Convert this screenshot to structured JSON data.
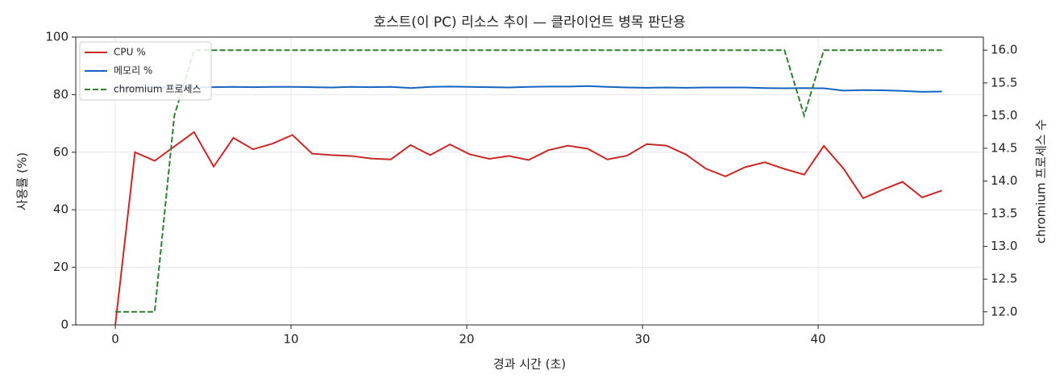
{
  "chart_data": {
    "type": "line",
    "title": "호스트(이 PC) 리소스 추이 — 클라이언트 병목 판단용",
    "x_label": "경과 시간 (초)",
    "y_label": "사용률 (%)",
    "y2_label": "chromium 프로세스 수",
    "x": [
      0,
      1.12,
      2.24,
      3.36,
      4.48,
      5.6,
      6.72,
      7.84,
      8.96,
      10.08,
      11.2,
      12.32,
      13.44,
      14.56,
      15.68,
      16.8,
      17.92,
      19.04,
      20.16,
      21.28,
      22.4,
      23.52,
      24.64,
      25.76,
      26.88,
      28.0,
      29.12,
      30.24,
      31.36,
      32.48,
      33.6,
      34.72,
      35.84,
      36.96,
      38.08,
      39.2,
      40.32,
      41.44,
      42.56,
      43.68,
      44.8,
      45.92,
      47.04
    ],
    "series": [
      {
        "name": "CPU %",
        "color": "#c62828",
        "style": "solid",
        "values": [
          0,
          60,
          57,
          62,
          67,
          55,
          65,
          61,
          63,
          66,
          59.5,
          59,
          58.7,
          57.8,
          57.5,
          62.5,
          59,
          62.7,
          59.3,
          57.7,
          58.7,
          57.3,
          60.7,
          62.3,
          61.2,
          57.5,
          58.8,
          62.8,
          62.3,
          59.2,
          54.3,
          51.6,
          54.8,
          56.5,
          54.2,
          52.2,
          62.2,
          54.3,
          44,
          47,
          49.7,
          44.3,
          46.7
        ]
      },
      {
        "name": "메모리 %",
        "color": "#1565c0",
        "style": "solid",
        "values": [
          82.4,
          82.5,
          82.5,
          82.5,
          82.5,
          82.6,
          82.7,
          82.6,
          82.7,
          82.7,
          82.6,
          82.5,
          82.7,
          82.6,
          82.7,
          82.3,
          82.7,
          82.8,
          82.7,
          82.6,
          82.5,
          82.7,
          82.8,
          82.8,
          83.0,
          82.7,
          82.5,
          82.4,
          82.5,
          82.4,
          82.5,
          82.5,
          82.5,
          82.3,
          82.2,
          82.3,
          82.2,
          81.4,
          81.6,
          81.5,
          81.3,
          81.0,
          81.1
        ]
      },
      {
        "name": "chromium 프로세스",
        "color": "#2e7d32",
        "style": "dashed",
        "axis": "y2",
        "values": [
          12,
          12,
          12,
          15,
          16,
          16,
          16,
          16,
          16,
          16,
          16,
          16,
          16,
          16,
          16,
          16,
          16,
          16,
          16,
          16,
          16,
          16,
          16,
          16,
          16,
          16,
          16,
          16,
          16,
          16,
          16,
          16,
          16,
          16,
          16,
          15,
          16,
          16,
          16,
          16,
          16,
          16,
          16
        ]
      }
    ],
    "xlim": [
      -2.25,
      49.4
    ],
    "xticks": [
      0,
      10,
      20,
      30,
      40
    ],
    "ylim": [
      0,
      100
    ],
    "yticks": [
      0,
      20,
      40,
      60,
      80,
      100
    ],
    "y2lim": [
      11.8,
      16.2
    ],
    "y2ticks": [
      {
        "value": 12,
        "label": "12.0"
      },
      12.5,
      {
        "value": 13,
        "label": "13.0"
      },
      13.5,
      {
        "value": 14,
        "label": "14.0"
      },
      14.5,
      {
        "value": 15,
        "label": "15.0"
      },
      15.5,
      {
        "value": 16,
        "label": "16.0"
      }
    ],
    "grid": true,
    "legend": "upper left"
  }
}
